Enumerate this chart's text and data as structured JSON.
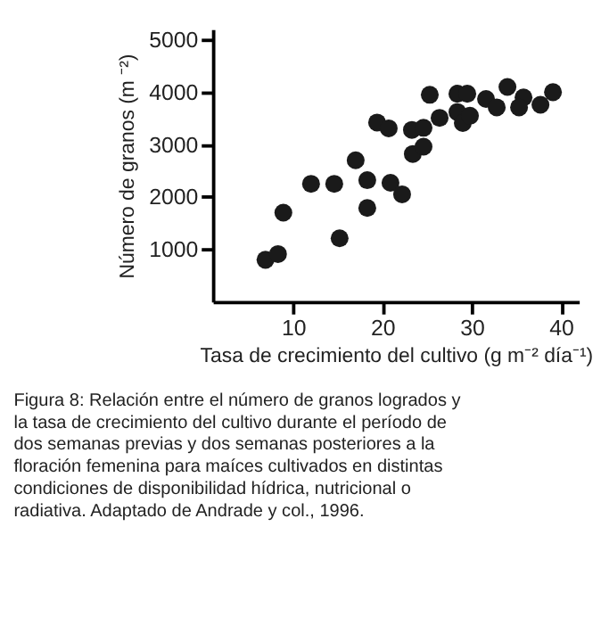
{
  "chart_data": {
    "type": "scatter",
    "xlabel": "Tasa de crecimiento del cultivo (g m⁻² día⁻¹)",
    "ylabel": "Número de granos (m ⁻²)",
    "annotations": [
      "Figura 8:  Relación entre el número de granos logrados y la tasa de crecimiento del cultivo durante el período de dos semanas previas y dos semanas posteriores a la floración femenina para maíces cultivados en distintas condiciones de disponibilidad hídrica, nutricional o radiativa. Adaptado de Andrade y col., 1996."
    ],
    "x": [
      6.9,
      8.3,
      8.9,
      12.0,
      14.6,
      15.2,
      17.0,
      18.3,
      18.3,
      19.4,
      20.7,
      20.9,
      22.2,
      23.3,
      24.6,
      23.4,
      24.6,
      25.3,
      26.4,
      28.4,
      29.5,
      28.4,
      29.0,
      29.8,
      31.6,
      32.8,
      34.0,
      35.8,
      35.3,
      37.7,
      39.1
    ],
    "values": [
      800,
      910,
      1700,
      2250,
      2250,
      1210,
      2700,
      2320,
      1790,
      3420,
      3310,
      2270,
      2050,
      3280,
      3320,
      2820,
      2960,
      3950,
      3510,
      3970,
      3970,
      3620,
      3410,
      3550,
      3870,
      3710,
      4100,
      3900,
      3710,
      3760,
      4000
    ],
    "color": "#1a1a1a",
    "marker": "circle",
    "grid": false,
    "xlim": [
      1,
      42
    ],
    "xticks": [
      10,
      20,
      30,
      40
    ],
    "ylim": [
      0,
      5200
    ],
    "yticks": [
      1000,
      2000,
      3000,
      4000,
      5000
    ]
  }
}
